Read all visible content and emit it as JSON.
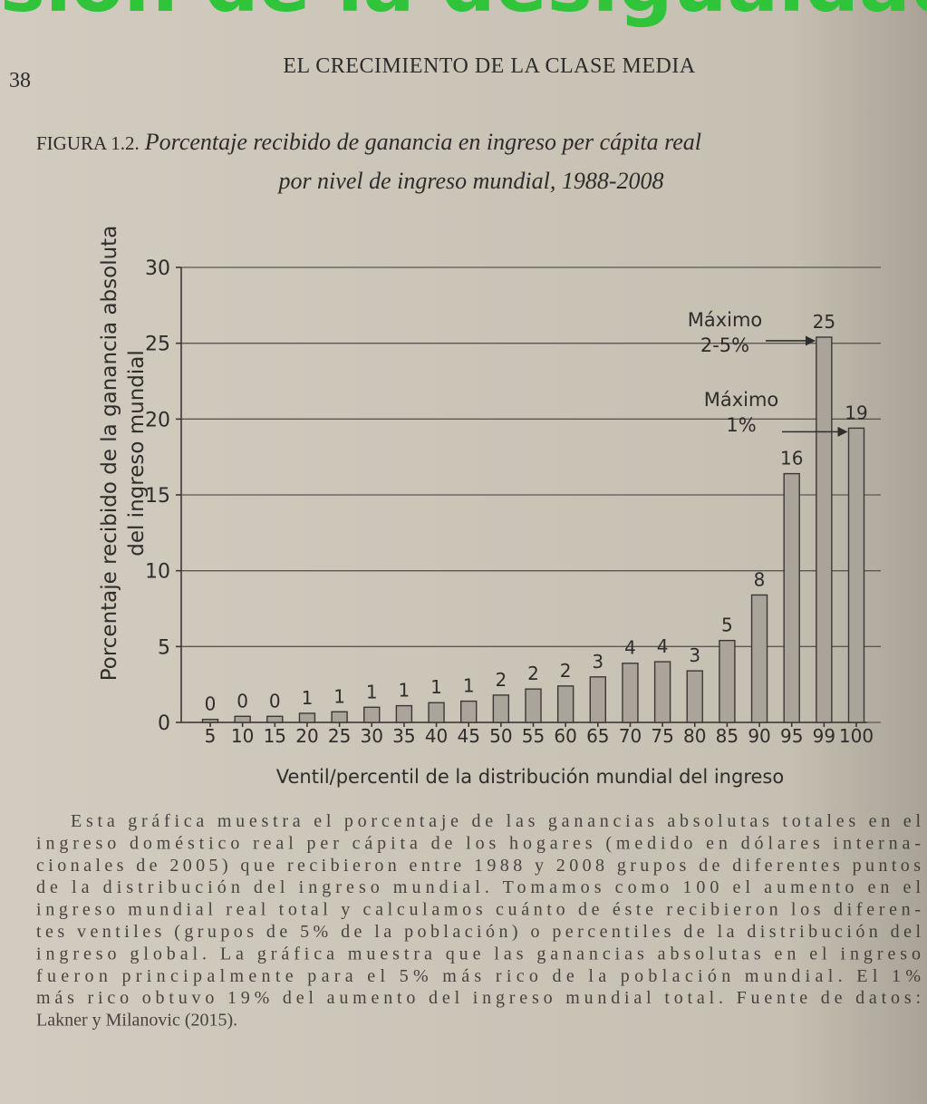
{
  "banner": "sión de la desigualdad",
  "page_number": "38",
  "running_head": "EL CRECIMIENTO DE LA CLASE MEDIA",
  "figure_label": "FIGURA 1.2.",
  "caption_lines": [
    "Porcentaje recibido de ganancia en ingreso per cápita real",
    "por nivel de ingreso mundial, 1988-2008"
  ],
  "chart_data": {
    "type": "bar",
    "y_label_lines": [
      "Porcentaje recibido de la ganancia absoluta",
      "del ingreso mundial"
    ],
    "x_label": "Ventil/percentil de la distribución mundial del ingreso",
    "categories": [
      "5",
      "10",
      "15",
      "20",
      "25",
      "30",
      "35",
      "40",
      "45",
      "50",
      "55",
      "60",
      "65",
      "70",
      "75",
      "80",
      "85",
      "90",
      "95",
      "99",
      "100"
    ],
    "values": [
      0.2,
      0.4,
      0.4,
      0.6,
      0.7,
      1.0,
      1.1,
      1.3,
      1.4,
      1.8,
      2.2,
      2.4,
      3.0,
      3.9,
      4.0,
      3.4,
      5.4,
      8.4,
      16.4,
      25.4,
      19.4
    ],
    "value_labels": [
      "0",
      "0",
      "0",
      "1",
      "1",
      "1",
      "1",
      "1",
      "1",
      "2",
      "2",
      "2",
      "3",
      "4",
      "4",
      "3",
      "5",
      "8",
      "16",
      "25",
      "19"
    ],
    "color": "#aaa49b",
    "ylim": [
      0,
      30
    ],
    "yticks": [
      0,
      5,
      10,
      15,
      20,
      25,
      30
    ],
    "grid": true,
    "annotations": [
      {
        "lines": [
          "Máximo",
          "2-5%"
        ],
        "category": "99"
      },
      {
        "lines": [
          "Máximo",
          "1%"
        ],
        "category": "100"
      }
    ]
  },
  "body_lines": [
    "Esta gráfica muestra el porcentaje de las ganancias absolutas totales en el",
    "ingreso doméstico real per cápita de los hogares (medido en dólares interna-",
    "cionales de 2005) que recibieron entre 1988 y 2008 grupos de diferentes puntos",
    "de la distribución del ingreso mundial. Tomamos como 100 el aumento en el",
    "ingreso mundial real total y calculamos cuánto de éste recibieron los diferen-",
    "tes ventiles (grupos de 5% de la población) o percentiles de la distribución del",
    "ingreso global. La gráfica muestra que las ganancias absolutas en el ingreso",
    "fueron principalmente para el 5% más rico de la población mundial. El 1%",
    "más rico obtuvo 19% del aumento del ingreso mundial total. Fuente de datos:",
    "Lakner y Milanovic (2015)."
  ]
}
